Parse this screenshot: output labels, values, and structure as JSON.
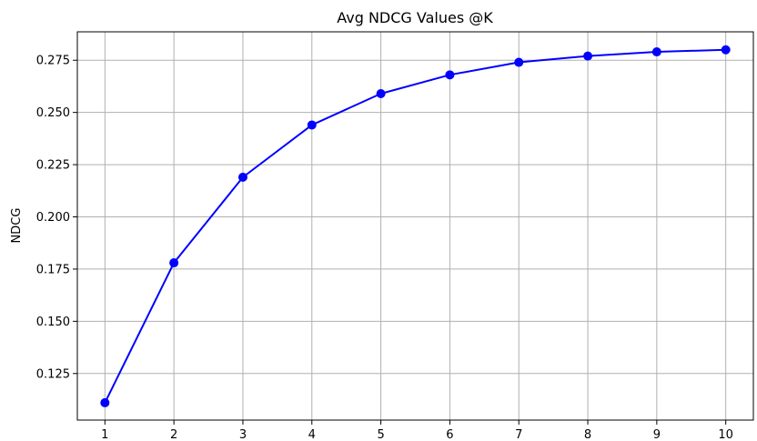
{
  "chart_data": {
    "type": "line",
    "title": "Avg NDCG Values @K",
    "xlabel": "",
    "ylabel": "NDCG",
    "x": [
      1,
      2,
      3,
      4,
      5,
      6,
      7,
      8,
      9,
      10
    ],
    "series": [
      {
        "values": [
          0.111,
          0.178,
          0.219,
          0.244,
          0.259,
          0.268,
          0.274,
          0.277,
          0.279,
          0.28
        ],
        "color": "#0000ff",
        "marker": "circle"
      }
    ],
    "xticks": [
      1,
      2,
      3,
      4,
      5,
      6,
      7,
      8,
      9,
      10
    ],
    "yticks": [
      "0.125",
      "0.150",
      "0.175",
      "0.200",
      "0.225",
      "0.250",
      "0.275"
    ],
    "xlim": [
      0.6,
      10.4
    ],
    "ylim": [
      0.1027,
      0.2886
    ],
    "grid": true,
    "legend": "none"
  }
}
